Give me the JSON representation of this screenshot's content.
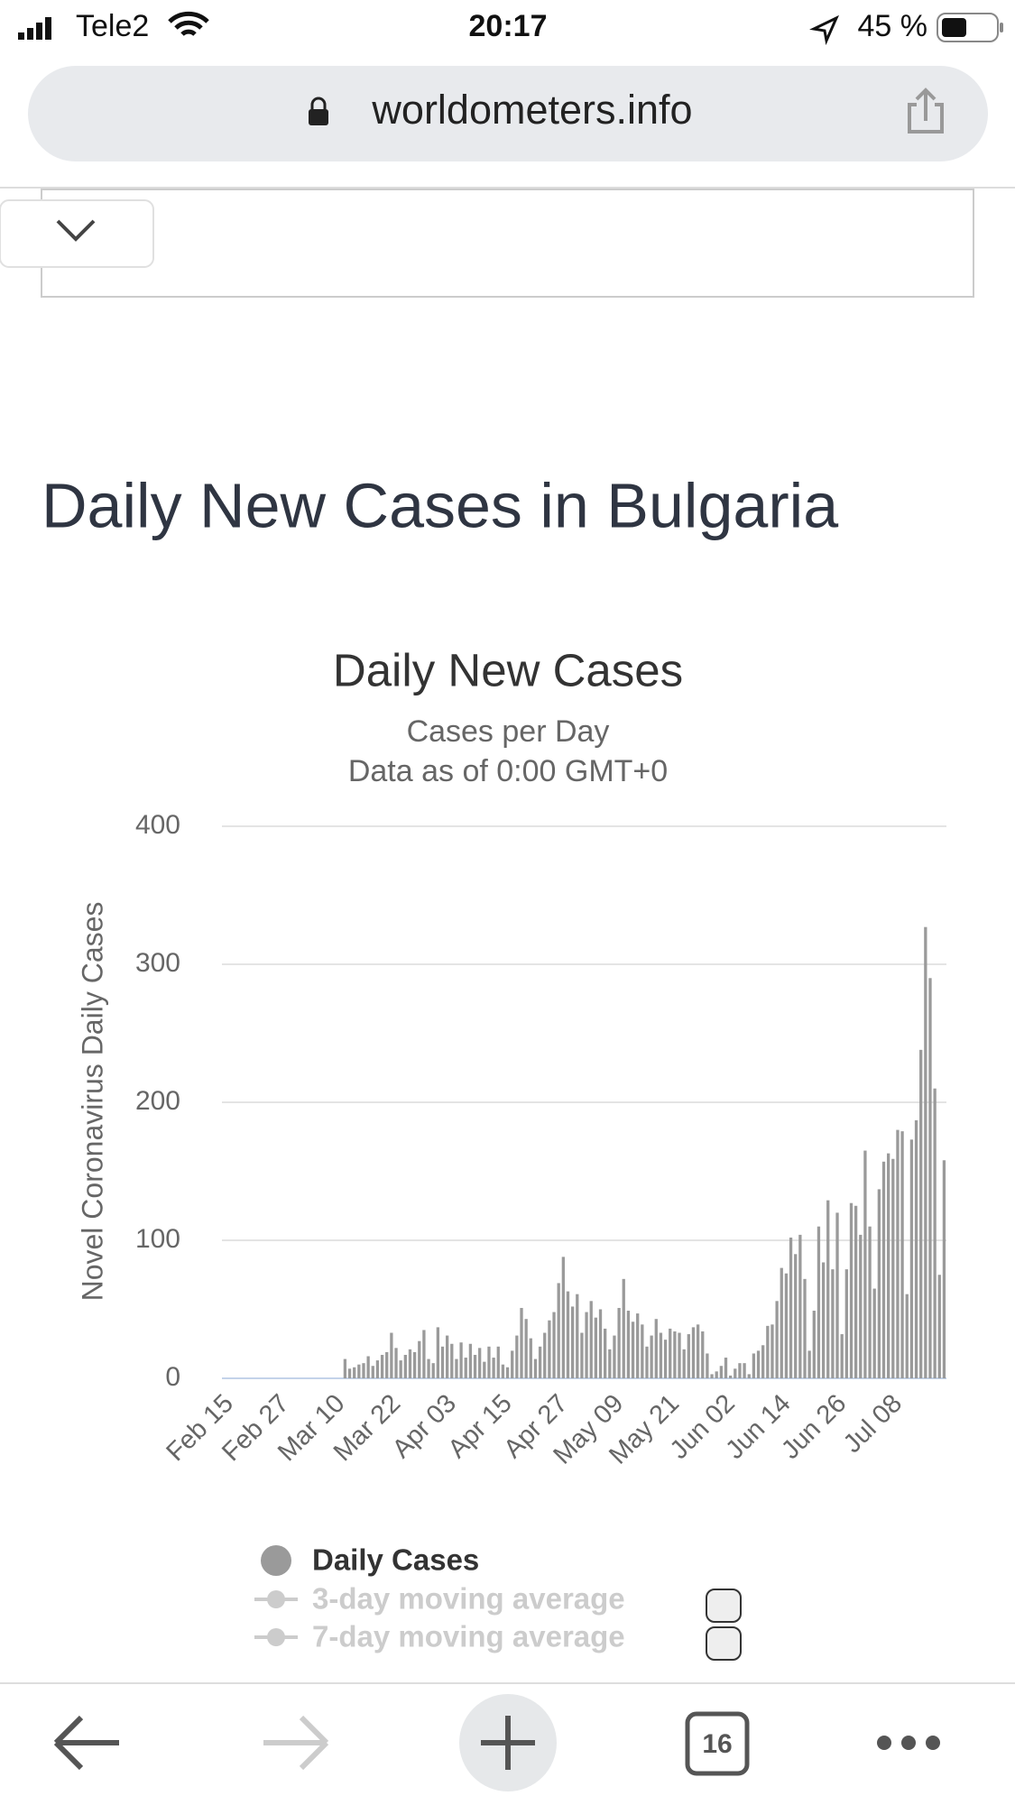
{
  "status_bar": {
    "carrier": "Tele2",
    "time": "20:17",
    "battery": "45 %"
  },
  "address_bar": {
    "url": "worldometers.info"
  },
  "heading": "Daily New Cases in Bulgaria",
  "chart_data": {
    "type": "bar",
    "title": "Daily New Cases",
    "subtitle": [
      "Cases per Day",
      "Data as of 0:00 GMT+0"
    ],
    "y_label": "Novel Coronavirus Daily Cases",
    "categories": [
      "Feb 15",
      null,
      null,
      null,
      null,
      null,
      null,
      null,
      null,
      null,
      null,
      null,
      "Feb 27",
      null,
      null,
      null,
      null,
      null,
      null,
      null,
      null,
      null,
      null,
      null,
      "Mar 10",
      null,
      null,
      null,
      null,
      null,
      null,
      null,
      null,
      null,
      null,
      null,
      "Mar 22",
      null,
      null,
      null,
      null,
      null,
      null,
      null,
      null,
      null,
      null,
      null,
      "Apr 03",
      null,
      null,
      null,
      null,
      null,
      null,
      null,
      null,
      null,
      null,
      null,
      "Apr 15",
      null,
      null,
      null,
      null,
      null,
      null,
      null,
      null,
      null,
      null,
      null,
      "Apr 27",
      null,
      null,
      null,
      null,
      null,
      null,
      null,
      null,
      null,
      null,
      null,
      "May 09",
      null,
      null,
      null,
      null,
      null,
      null,
      null,
      null,
      null,
      null,
      null,
      "May 21",
      null,
      null,
      null,
      null,
      null,
      null,
      null,
      null,
      null,
      null,
      null,
      "Jun 02",
      null,
      null,
      null,
      null,
      null,
      null,
      null,
      null,
      null,
      null,
      null,
      "Jun 14",
      null,
      null,
      null,
      null,
      null,
      null,
      null,
      null,
      null,
      null,
      null,
      "Jun 26",
      null,
      null,
      null,
      null,
      null,
      null,
      null,
      null,
      null,
      null,
      null,
      "Jul 08",
      null,
      null,
      null,
      null,
      null,
      null,
      null,
      null,
      null,
      null,
      null
    ],
    "series": [
      {
        "name": "Daily Cases",
        "color": "#9a9a9a",
        "values": [
          0,
          0,
          0,
          0,
          0,
          0,
          0,
          0,
          0,
          0,
          0,
          0,
          0,
          0,
          0,
          0,
          0,
          0,
          0,
          0,
          0,
          0,
          0,
          0,
          0,
          0,
          14,
          7,
          8,
          10,
          11,
          16,
          9,
          13,
          17,
          19,
          33,
          22,
          13,
          17,
          21,
          19,
          27,
          35,
          14,
          11,
          37,
          23,
          31,
          25,
          14,
          26,
          15,
          25,
          17,
          22,
          12,
          23,
          15,
          23,
          10,
          8,
          20,
          31,
          51,
          43,
          29,
          14,
          23,
          33,
          42,
          48,
          69,
          88,
          63,
          52,
          61,
          33,
          48,
          56,
          44,
          50,
          36,
          21,
          31,
          51,
          72,
          49,
          41,
          47,
          39,
          23,
          31,
          43,
          33,
          28,
          36,
          34,
          33,
          21,
          32,
          37,
          39,
          34,
          18,
          3,
          5,
          9,
          15,
          2,
          7,
          11,
          11,
          3,
          18,
          20,
          24,
          38,
          39,
          56,
          80,
          76,
          102,
          90,
          104,
          72,
          20,
          49,
          110,
          84,
          129,
          79,
          120,
          32,
          79,
          127,
          125,
          104,
          165,
          110,
          65,
          137,
          157,
          163,
          159,
          180,
          179,
          61,
          173,
          187,
          238,
          327,
          290,
          210,
          75,
          158
        ]
      }
    ],
    "inactive_series": [
      {
        "name": "3-day moving average",
        "color": "#cccccc"
      },
      {
        "name": "7-day moving average",
        "color": "#cccccc"
      }
    ],
    "ylim": [
      0,
      400
    ],
    "yticks": [
      0,
      100,
      200,
      300,
      400
    ],
    "grid": true
  },
  "toolbar": {
    "tabs": "16"
  }
}
